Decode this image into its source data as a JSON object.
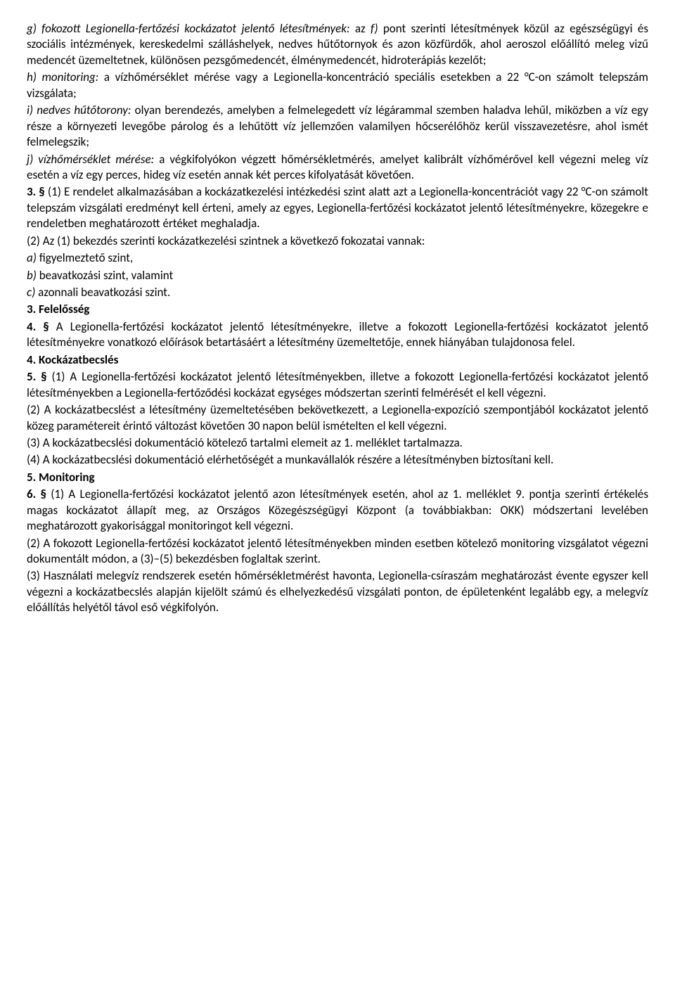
{
  "paragraphs": [
    {
      "segments": [
        {
          "text": "g) fokozott Legionella-fertőzési kockázatot jelentő létesítmények:",
          "style": "italic"
        },
        {
          "text": " az ",
          "style": ""
        },
        {
          "text": "f)",
          "style": "italic"
        },
        {
          "text": " pont szerinti létesítmények közül az egészségügyi és szociális intézmények, kereskedelmi szálláshelyek, nedves hűtőtornyok és azon közfürdők, ahol aeroszol előállító meleg vizű medencét üzemeltetnek, különösen pezsgőmedencét, élménymedencét, hidroterápiás kezelőt;",
          "style": ""
        }
      ]
    },
    {
      "segments": [
        {
          "text": "h) monitoring:",
          "style": "italic"
        },
        {
          "text": " a vízhőmérséklet mérése vagy a Legionella-koncentráció speciális esetekben a 22 °C-on számolt telepszám vizsgálata;",
          "style": ""
        }
      ]
    },
    {
      "segments": [
        {
          "text": "i) nedves hűtőtorony:",
          "style": "italic"
        },
        {
          "text": " olyan berendezés, amelyben a felmelegedett víz légárammal szemben haladva lehűl, miközben a víz egy része a környezeti levegőbe párolog és a lehűtött víz jellemzően valamilyen hőcserélőhöz kerül visszavezetésre, ahol ismét felmelegszik;",
          "style": ""
        }
      ]
    },
    {
      "segments": [
        {
          "text": "j) vízhőmérséklet mérése:",
          "style": "italic"
        },
        {
          "text": " a végkifolyókon végzett hőmérsékletmérés, amelyet kalibrált vízhőmérővel kell végezni meleg víz esetén a víz egy perces, hideg víz esetén annak két perces kifolyatását követően.",
          "style": ""
        }
      ]
    },
    {
      "segments": [
        {
          "text": "3. §",
          "style": "bold"
        },
        {
          "text": " (1) E rendelet alkalmazásában a kockázatkezelési intézkedési szint alatt azt a Legionella-koncentrációt vagy 22 °C-on számolt telepszám vizsgálati eredményt kell érteni, amely az egyes, Legionella-fertőzési kockázatot jelentő létesítményekre, közegekre e rendeletben meghatározott értéket meghaladja.",
          "style": ""
        }
      ]
    },
    {
      "segments": [
        {
          "text": "(2) Az (1) bekezdés szerinti kockázatkezelési szintnek a következő fokozatai vannak:",
          "style": ""
        }
      ]
    },
    {
      "segments": [
        {
          "text": "a)",
          "style": "italic"
        },
        {
          "text": " figyelmeztető szint,",
          "style": ""
        }
      ]
    },
    {
      "segments": [
        {
          "text": "b)",
          "style": "italic"
        },
        {
          "text": " beavatkozási szint, valamint",
          "style": ""
        }
      ]
    },
    {
      "segments": [
        {
          "text": "c)",
          "style": "italic"
        },
        {
          "text": " azonnali beavatkozási szint.",
          "style": ""
        }
      ]
    },
    {
      "segments": [
        {
          "text": "3. Felelősség",
          "style": "bold"
        }
      ]
    },
    {
      "segments": [
        {
          "text": "4. §",
          "style": "bold"
        },
        {
          "text": " A Legionella-fertőzési kockázatot jelentő létesítményekre, illetve a fokozott Legionella-fertőzési kockázatot jelentő létesítményekre vonatkozó előírások betartásáért a létesítmény üzemeltetője, ennek hiányában tulajdonosa felel.",
          "style": ""
        }
      ]
    },
    {
      "segments": [
        {
          "text": "4. Kockázatbecslés",
          "style": "bold"
        }
      ]
    },
    {
      "segments": [
        {
          "text": "5. §",
          "style": "bold"
        },
        {
          "text": " (1) A Legionella-fertőzési kockázatot jelentő létesítményekben, illetve a fokozott Legionella-fertőzési kockázatot jelentő létesítményekben a Legionella-fertőződési kockázat egységes módszertan szerinti felmérését el kell végezni.",
          "style": ""
        }
      ]
    },
    {
      "segments": [
        {
          "text": "(2) A kockázatbecslést a létesítmény üzemeltetésében bekövetkezett, a Legionella-expozíció szempontjából kockázatot jelentő közeg paramétereit érintő változást követően 30 napon belül ismételten el kell végezni.",
          "style": ""
        }
      ]
    },
    {
      "segments": [
        {
          "text": "(3) A kockázatbecslési dokumentáció kötelező tartalmi elemeit az 1. melléklet tartalmazza.",
          "style": ""
        }
      ]
    },
    {
      "segments": [
        {
          "text": "(4) A kockázatbecslési dokumentáció elérhetőségét a munkavállalók részére a létesítményben biztosítani kell.",
          "style": ""
        }
      ]
    },
    {
      "segments": [
        {
          "text": "5. Monitoring",
          "style": "bold"
        }
      ]
    },
    {
      "segments": [
        {
          "text": "6. §",
          "style": "bold"
        },
        {
          "text": " (1) A Legionella-fertőzési kockázatot jelentő azon létesítmények esetén, ahol az 1. melléklet 9. pontja szerinti értékelés magas kockázatot állapít meg, az Országos Közegészségügyi Központ (a továbbiakban: OKK) módszertani levelében meghatározott gyakorisággal monitoringot kell végezni.",
          "style": ""
        }
      ]
    },
    {
      "segments": [
        {
          "text": "(2) A fokozott Legionella-fertőzési kockázatot jelentő létesítményekben minden esetben kötelező monitoring vizsgálatot végezni dokumentált módon, a (3)–(5) bekezdésben foglaltak szerint.",
          "style": ""
        }
      ]
    },
    {
      "segments": [
        {
          "text": "(3) Használati melegvíz rendszerek esetén hőmérsékletmérést havonta, Legionella-csíraszám meghatározást évente egyszer kell végezni a kockázatbecslés alapján kijelölt számú és elhelyezkedésű vizsgálati ponton, de épületenként legalább egy, a melegvíz előállítás helyétől távol eső végkifolyón.",
          "style": ""
        }
      ]
    }
  ]
}
